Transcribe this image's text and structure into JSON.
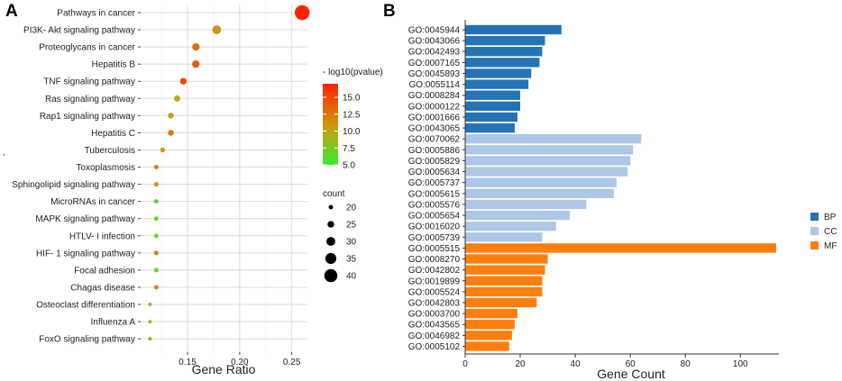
{
  "stray_mark": ",",
  "chart_data": [
    {
      "panel": "A",
      "type": "scatter",
      "title": "",
      "xlabel": "Gene Ratio",
      "ylabel": "",
      "xlim": [
        0.105,
        0.265
      ],
      "xticks": [
        0.15,
        0.2,
        0.25
      ],
      "xtick_labels": [
        "0.15",
        "0.20",
        "0.25"
      ],
      "grid": true,
      "color_legend": {
        "title": "- log10(pvalue)",
        "range": [
          5,
          17
        ],
        "ticks": [
          5.0,
          7.5,
          10.0,
          12.5,
          15.0
        ],
        "tick_labels": [
          "5.0",
          "7.5",
          "10.0",
          "12.5",
          "15.0"
        ],
        "colors": [
          "#33ee33",
          "#c8a010",
          "#ff2200"
        ]
      },
      "size_legend": {
        "title": "count",
        "values": [
          20,
          25,
          30,
          35,
          40
        ],
        "labels": [
          "20",
          "25",
          "30",
          "35",
          "40"
        ]
      },
      "points": [
        {
          "term": "Pathways in cancer",
          "gene_ratio": 0.26,
          "count": 44,
          "neg_log10_p": 17.0
        },
        {
          "term": "PI3K- Akt signaling pathway",
          "gene_ratio": 0.178,
          "count": 30,
          "neg_log10_p": 11.0
        },
        {
          "term": "Proteoglycans in cancer",
          "gene_ratio": 0.158,
          "count": 27,
          "neg_log10_p": 13.0
        },
        {
          "term": "Hepatitis B",
          "gene_ratio": 0.158,
          "count": 27,
          "neg_log10_p": 14.0
        },
        {
          "term": "TNF signaling pathway",
          "gene_ratio": 0.146,
          "count": 25,
          "neg_log10_p": 15.0
        },
        {
          "term": "Ras signaling pathway",
          "gene_ratio": 0.14,
          "count": 24,
          "neg_log10_p": 10.0
        },
        {
          "term": "Rap1 signaling pathway",
          "gene_ratio": 0.134,
          "count": 23,
          "neg_log10_p": 10.0
        },
        {
          "term": "Hepatitis C",
          "gene_ratio": 0.134,
          "count": 23,
          "neg_log10_p": 12.5
        },
        {
          "term": "Tuberculosis",
          "gene_ratio": 0.126,
          "count": 21,
          "neg_log10_p": 10.5
        },
        {
          "term": "Toxoplasmosis",
          "gene_ratio": 0.12,
          "count": 20,
          "neg_log10_p": 12.0
        },
        {
          "term": "Sphingolipid signaling pathway",
          "gene_ratio": 0.12,
          "count": 20,
          "neg_log10_p": 11.0
        },
        {
          "term": "MicroRNAs in cancer",
          "gene_ratio": 0.12,
          "count": 20,
          "neg_log10_p": 6.0
        },
        {
          "term": "MAPK signaling pathway",
          "gene_ratio": 0.12,
          "count": 20,
          "neg_log10_p": 6.5
        },
        {
          "term": "HTLV- I infection",
          "gene_ratio": 0.12,
          "count": 20,
          "neg_log10_p": 6.0
        },
        {
          "term": "HIF- 1 signaling pathway",
          "gene_ratio": 0.12,
          "count": 20,
          "neg_log10_p": 12.0
        },
        {
          "term": "Focal adhesion",
          "gene_ratio": 0.12,
          "count": 20,
          "neg_log10_p": 7.0
        },
        {
          "term": "Chagas disease",
          "gene_ratio": 0.12,
          "count": 20,
          "neg_log10_p": 11.5
        },
        {
          "term": "Osteoclast differentiation",
          "gene_ratio": 0.114,
          "count": 18,
          "neg_log10_p": 9.0
        },
        {
          "term": "Influenza A",
          "gene_ratio": 0.114,
          "count": 18,
          "neg_log10_p": 8.0
        },
        {
          "term": "FoxO signaling pathway",
          "gene_ratio": 0.114,
          "count": 18,
          "neg_log10_p": 9.5
        }
      ]
    },
    {
      "panel": "B",
      "type": "bar",
      "orientation": "horizontal",
      "title": "",
      "xlabel": "Gene Count",
      "ylabel": "",
      "xlim": [
        0,
        114
      ],
      "xticks": [
        0,
        20,
        40,
        60,
        80,
        100
      ],
      "xtick_labels": [
        "0",
        "20",
        "40",
        "60",
        "80",
        "100"
      ],
      "grid": false,
      "legend": {
        "position": "right",
        "entries": [
          {
            "name": "BP",
            "color": "#2474b5"
          },
          {
            "name": "CC",
            "color": "#aec7e8"
          },
          {
            "name": "MF",
            "color": "#ff7f0e"
          }
        ]
      },
      "bars": [
        {
          "id": "GO:0045944",
          "value": 35,
          "group": "BP"
        },
        {
          "id": "GO:0043066",
          "value": 29,
          "group": "BP"
        },
        {
          "id": "GO:0042493",
          "value": 28,
          "group": "BP"
        },
        {
          "id": "GO:0007165",
          "value": 27,
          "group": "BP"
        },
        {
          "id": "GO:0045893",
          "value": 24,
          "group": "BP"
        },
        {
          "id": "GO:0055114",
          "value": 23,
          "group": "BP"
        },
        {
          "id": "GO:0008284",
          "value": 20,
          "group": "BP"
        },
        {
          "id": "GO:0000122",
          "value": 20,
          "group": "BP"
        },
        {
          "id": "GO:0001666",
          "value": 19,
          "group": "BP"
        },
        {
          "id": "GO:0043065",
          "value": 18,
          "group": "BP"
        },
        {
          "id": "GO:0070062",
          "value": 64,
          "group": "CC"
        },
        {
          "id": "GO:0005886",
          "value": 61,
          "group": "CC"
        },
        {
          "id": "GO:0005829",
          "value": 60,
          "group": "CC"
        },
        {
          "id": "GO:0005634",
          "value": 59,
          "group": "CC"
        },
        {
          "id": "GO:0005737",
          "value": 55,
          "group": "CC"
        },
        {
          "id": "GO:0005615",
          "value": 54,
          "group": "CC"
        },
        {
          "id": "GO:0005576",
          "value": 44,
          "group": "CC"
        },
        {
          "id": "GO:0005654",
          "value": 38,
          "group": "CC"
        },
        {
          "id": "GO:0016020",
          "value": 33,
          "group": "CC"
        },
        {
          "id": "GO:0005739",
          "value": 28,
          "group": "CC"
        },
        {
          "id": "GO:0005515",
          "value": 113,
          "group": "MF"
        },
        {
          "id": "GO:0008270",
          "value": 30,
          "group": "MF"
        },
        {
          "id": "GO:0042802",
          "value": 29,
          "group": "MF"
        },
        {
          "id": "GO:0019899",
          "value": 28,
          "group": "MF"
        },
        {
          "id": "GO:0005524",
          "value": 28,
          "group": "MF"
        },
        {
          "id": "GO:0042803",
          "value": 26,
          "group": "MF"
        },
        {
          "id": "GO:0003700",
          "value": 19,
          "group": "MF"
        },
        {
          "id": "GO:0043565",
          "value": 18,
          "group": "MF"
        },
        {
          "id": "GO:0046982",
          "value": 17,
          "group": "MF"
        },
        {
          "id": "GO:0005102",
          "value": 16,
          "group": "MF"
        }
      ]
    }
  ]
}
